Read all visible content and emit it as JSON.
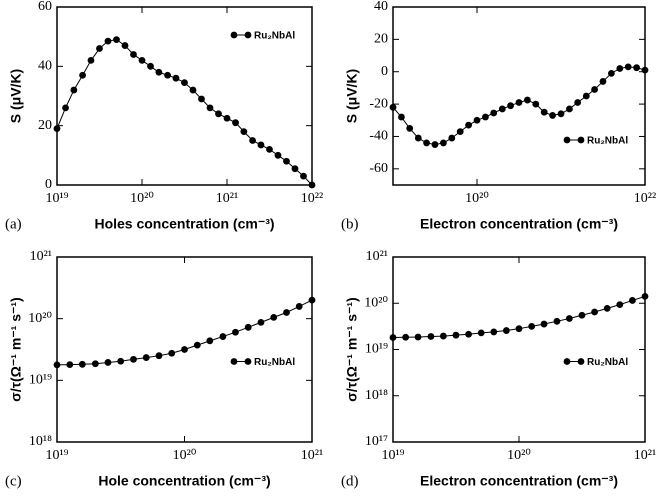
{
  "chart_data": [
    {
      "type": "line",
      "panel_label": "(a)",
      "xlabel": "Holes concentration (cm⁻³)",
      "ylabel": "S (μV/K)",
      "xscale": "log",
      "yscale": "linear",
      "legend": "upper right",
      "xlim": [
        1e+19,
        1e+22
      ],
      "ylim": [
        0,
        60
      ],
      "xticks": [
        {
          "value": 1e+19,
          "label": "10¹⁹"
        },
        {
          "value": 1e+20,
          "label": "10²⁰"
        },
        {
          "value": 1e+21,
          "label": "10²¹"
        },
        {
          "value": 1e+22,
          "label": "10²²"
        }
      ],
      "yticks": [
        0,
        20,
        40,
        60
      ],
      "x": [
        1e+19,
        1.26e+19,
        1.58e+19,
        2e+19,
        2.51e+19,
        3.16e+19,
        3.98e+19,
        5.01e+19,
        6.31e+19,
        7.94e+19,
        1e+20,
        1.26e+20,
        1.58e+20,
        2e+20,
        2.51e+20,
        3.16e+20,
        3.98e+20,
        5.01e+20,
        6.31e+20,
        7.94e+20,
        1e+21,
        1.26e+21,
        1.58e+21,
        2e+21,
        2.51e+21,
        3.16e+21,
        3.98e+21,
        5.01e+21,
        6.31e+21,
        7.94e+21,
        1e+22
      ],
      "series": [
        {
          "name": "Ru₂NbAl",
          "color": "#000000",
          "values": [
            19,
            26,
            32,
            37,
            42,
            46,
            48.5,
            49,
            47,
            44,
            42,
            40,
            38,
            37,
            36,
            34.5,
            32,
            29,
            26,
            24,
            22.5,
            21,
            18,
            15,
            13.5,
            12,
            10,
            8,
            5.5,
            3,
            0
          ]
        }
      ]
    },
    {
      "type": "line",
      "panel_label": "(b)",
      "xlabel": "Electron concentration (cm⁻³)",
      "ylabel": "S (μV/K)",
      "xscale": "log",
      "yscale": "linear",
      "legend": "lower right",
      "xlim": [
        1e+19,
        1e+22
      ],
      "ylim": [
        -70,
        40
      ],
      "xticks": [
        {
          "value": 1e+20,
          "label": "10²⁰"
        },
        {
          "value": 1e+22,
          "label": "10²²"
        }
      ],
      "yticks": [
        -60,
        -40,
        -20,
        0,
        20,
        40
      ],
      "x": [
        1e+19,
        1.26e+19,
        1.58e+19,
        2e+19,
        2.51e+19,
        3.16e+19,
        3.98e+19,
        5.01e+19,
        6.31e+19,
        7.94e+19,
        1e+20,
        1.26e+20,
        1.58e+20,
        2e+20,
        2.51e+20,
        3.16e+20,
        3.98e+20,
        5.01e+20,
        6.31e+20,
        7.94e+20,
        1e+21,
        1.26e+21,
        1.58e+21,
        2e+21,
        2.51e+21,
        3.16e+21,
        3.98e+21,
        5.01e+21,
        6.31e+21,
        7.94e+21,
        1e+22
      ],
      "series": [
        {
          "name": "Ru₂NbAl",
          "color": "#000000",
          "values": [
            -22,
            -28,
            -35,
            -41,
            -44,
            -45,
            -44,
            -41,
            -37,
            -33,
            -30,
            -28,
            -25.5,
            -23,
            -21,
            -19,
            -17.5,
            -20,
            -25,
            -27,
            -26,
            -23,
            -19,
            -15,
            -11,
            -6,
            -1,
            2,
            3,
            2.5,
            1
          ]
        }
      ]
    },
    {
      "type": "line",
      "panel_label": "(c)",
      "xlabel": "Hole concentration (cm⁻³)",
      "ylabel": "σ/τ(Ω⁻¹ m⁻¹ s⁻¹)",
      "xscale": "log",
      "yscale": "log",
      "legend": "center right",
      "xlim": [
        1e+19,
        1e+21
      ],
      "ylim": [
        1e+18,
        1e+21
      ],
      "xticks": [
        {
          "value": 1e+19,
          "label": "10¹⁹"
        },
        {
          "value": 1e+20,
          "label": "10²⁰"
        },
        {
          "value": 1e+21,
          "label": "10²¹"
        }
      ],
      "yticks": [
        {
          "value": 1e+18,
          "label": "10¹⁸"
        },
        {
          "value": 1e+19,
          "label": "10¹⁹"
        },
        {
          "value": 1e+20,
          "label": "10²⁰"
        },
        {
          "value": 1e+21,
          "label": "10²¹"
        }
      ],
      "x": [
        1e+19,
        1.26e+19,
        1.58e+19,
        2e+19,
        2.51e+19,
        3.16e+19,
        3.98e+19,
        5.01e+19,
        6.31e+19,
        7.94e+19,
        1e+20,
        1.26e+20,
        1.58e+20,
        2e+20,
        2.51e+20,
        3.16e+20,
        3.98e+20,
        5.01e+20,
        6.31e+20,
        7.94e+20,
        1e+21
      ],
      "series": [
        {
          "name": "Ru₂NbAl",
          "color": "#000000",
          "values": [
            1.78e+19,
            1.8e+19,
            1.82e+19,
            1.86e+19,
            1.95e+19,
            2.04e+19,
            2.19e+19,
            2.34e+19,
            2.51e+19,
            2.75e+19,
            3.16e+19,
            3.72e+19,
            4.37e+19,
            5.13e+19,
            6.03e+19,
            7.24e+19,
            8.71e+19,
            1.05e+20,
            1.26e+20,
            1.58e+20,
            2e+20
          ]
        }
      ]
    },
    {
      "type": "line",
      "panel_label": "(d)",
      "xlabel": "Electron concentration (cm⁻³)",
      "ylabel": "σ/τ(Ω⁻¹ m⁻¹ s⁻¹)",
      "xscale": "log",
      "yscale": "log",
      "legend": "center right",
      "xlim": [
        1e+19,
        1e+21
      ],
      "ylim": [
        1e+17,
        1e+21
      ],
      "xticks": [
        {
          "value": 1e+19,
          "label": "10¹⁹"
        },
        {
          "value": 1e+20,
          "label": "10²⁰"
        },
        {
          "value": 1e+21,
          "label": "10²¹"
        }
      ],
      "yticks": [
        {
          "value": 1e+17,
          "label": "10¹⁷"
        },
        {
          "value": 1e+18,
          "label": "10¹⁸"
        },
        {
          "value": 1e+19,
          "label": "10¹⁹"
        },
        {
          "value": 1e+20,
          "label": "10²⁰"
        },
        {
          "value": 1e+21,
          "label": "10²¹"
        }
      ],
      "x": [
        1e+19,
        1.26e+19,
        1.58e+19,
        2e+19,
        2.51e+19,
        3.16e+19,
        3.98e+19,
        5.01e+19,
        6.31e+19,
        7.94e+19,
        1e+20,
        1.26e+20,
        1.58e+20,
        2e+20,
        2.51e+20,
        3.16e+20,
        3.98e+20,
        5.01e+20,
        6.31e+20,
        7.94e+20,
        1e+21
      ],
      "series": [
        {
          "name": "Ru₂NbAl",
          "color": "#000000",
          "values": [
            1.82e+19,
            1.84e+19,
            1.86e+19,
            1.91e+19,
            1.95e+19,
            2.04e+19,
            2.14e+19,
            2.29e+19,
            2.4e+19,
            2.57e+19,
            2.82e+19,
            3.16e+19,
            3.55e+19,
            4.07e+19,
            4.68e+19,
            5.5e+19,
            6.46e+19,
            7.76e+19,
            9.33e+19,
            1.15e+20,
            1.41e+20
          ]
        }
      ]
    }
  ]
}
